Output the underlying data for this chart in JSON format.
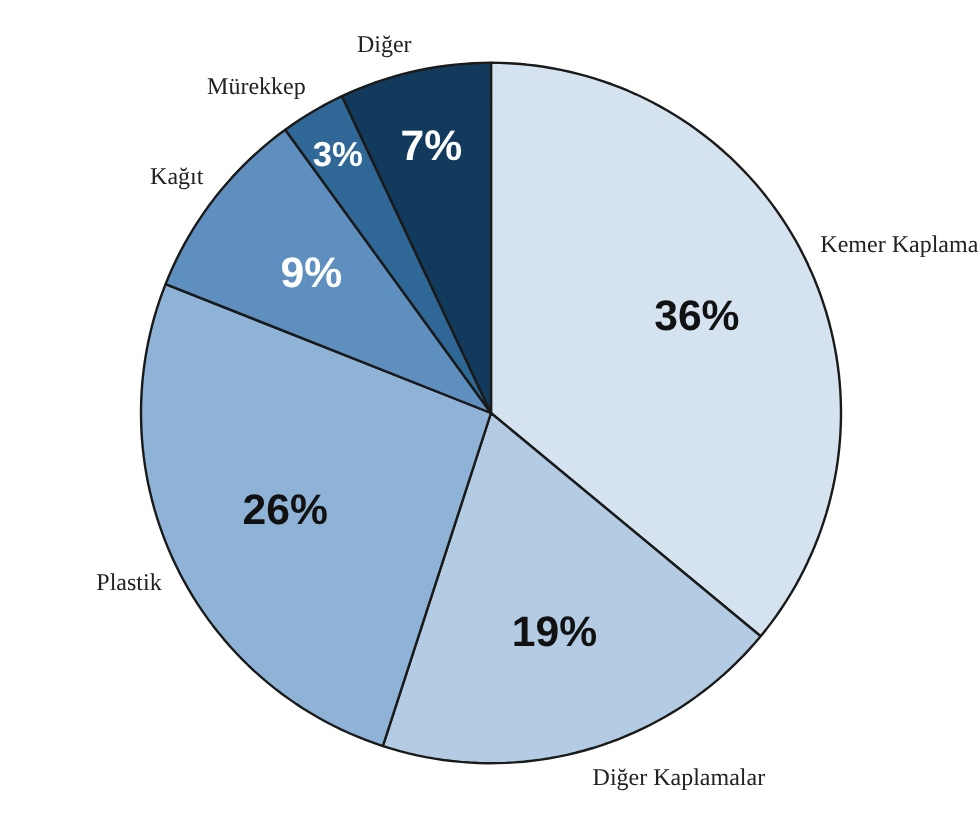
{
  "chart_data": {
    "type": "pie",
    "categories": [
      "Kemer Kaplama",
      "Diğer Kaplamalar",
      "Plastik",
      "Kağıt",
      "Mürekkep",
      "Diğer"
    ],
    "values": [
      36,
      19,
      26,
      9,
      3,
      7
    ],
    "value_labels": [
      "36%",
      "19%",
      "26%",
      "9%",
      "3%",
      "7%"
    ],
    "colors": [
      "#d5e3f0",
      "#b3cce4",
      "#8eb3d6",
      "#5e8fbf",
      "#2f6797",
      "#123a5c"
    ]
  }
}
